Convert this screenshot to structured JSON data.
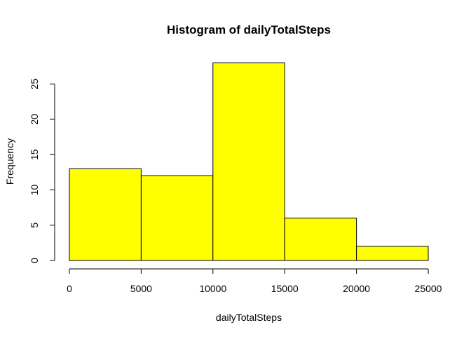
{
  "chart_data": {
    "type": "bar",
    "title": "Histogram of dailyTotalSteps",
    "xlabel": "dailyTotalSteps",
    "ylabel": "Frequency",
    "bins": [
      {
        "from": 0,
        "to": 5000,
        "count": 13
      },
      {
        "from": 5000,
        "to": 10000,
        "count": 12
      },
      {
        "from": 10000,
        "to": 15000,
        "count": 28
      },
      {
        "from": 15000,
        "to": 20000,
        "count": 6
      },
      {
        "from": 20000,
        "to": 25000,
        "count": 2
      }
    ],
    "xticks": [
      0,
      5000,
      10000,
      15000,
      20000,
      25000
    ],
    "yticks": [
      0,
      5,
      10,
      15,
      20,
      25
    ],
    "xlim": [
      0,
      25000
    ],
    "ylim": [
      0,
      28
    ],
    "grid": false,
    "bar_color": "#ffff00",
    "border_color": "#000000"
  }
}
